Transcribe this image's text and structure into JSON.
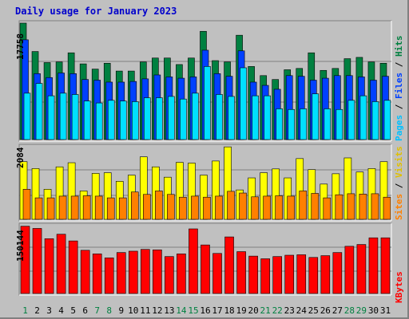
{
  "title": "Daily usage for January 2023",
  "colors": {
    "hits": "#008040",
    "files": "#0040ff",
    "pages": "#00e0ff",
    "visits": "#ffff00",
    "sites": "#ff8000",
    "kbytes": "#ff0000",
    "axis_label_normal": "#000000",
    "axis_label_weekend": "#008040",
    "title": "#0000cc"
  },
  "chart_data": [
    {
      "type": "bar",
      "panel": "hits-files-pages",
      "y_max_label": "17758",
      "ylim": [
        0,
        17758
      ],
      "legend": [
        "Pages",
        "Files",
        "Hits"
      ],
      "categories": [
        "1",
        "2",
        "3",
        "4",
        "5",
        "6",
        "7",
        "8",
        "9",
        "10",
        "11",
        "12",
        "13",
        "14",
        "15",
        "16",
        "17",
        "18",
        "19",
        "20",
        "21",
        "22",
        "23",
        "24",
        "25",
        "26",
        "27",
        "28",
        "29",
        "30",
        "31"
      ],
      "series": [
        {
          "name": "Hits",
          "values": [
            17758,
            13400,
            11700,
            11800,
            13200,
            11500,
            10700,
            11600,
            10400,
            10400,
            11800,
            12400,
            12400,
            11400,
            12400,
            16500,
            12000,
            11800,
            15900,
            11100,
            9700,
            9100,
            10600,
            10800,
            13200,
            10500,
            10800,
            12300,
            12500,
            11800,
            11600
          ]
        },
        {
          "name": "Files",
          "values": [
            15200,
            10000,
            9400,
            10100,
            10000,
            9100,
            9000,
            8700,
            8700,
            8800,
            9200,
            9800,
            9500,
            9300,
            9500,
            13600,
            10000,
            9600,
            13500,
            8700,
            8200,
            7600,
            9700,
            9600,
            9000,
            9300,
            9700,
            9700,
            9500,
            9000,
            9600
          ]
        },
        {
          "name": "Pages",
          "values": [
            7000,
            8500,
            6600,
            7000,
            6800,
            5800,
            5500,
            5900,
            5800,
            5700,
            6300,
            6300,
            6500,
            6100,
            7000,
            11100,
            6800,
            6500,
            10900,
            6600,
            6600,
            4600,
            4500,
            4600,
            6900,
            4600,
            4500,
            5900,
            6600,
            5700,
            5900
          ]
        }
      ],
      "xlabel": "",
      "ylabel": ""
    },
    {
      "type": "bar",
      "panel": "visits-sites",
      "y_max_label": "2084",
      "ylim": [
        0,
        2084
      ],
      "legend": [
        "Sites",
        "Visits"
      ],
      "categories": [
        "1",
        "2",
        "3",
        "4",
        "5",
        "6",
        "7",
        "8",
        "9",
        "10",
        "11",
        "12",
        "13",
        "14",
        "15",
        "16",
        "17",
        "18",
        "19",
        "20",
        "21",
        "22",
        "23",
        "24",
        "25",
        "26",
        "27",
        "28",
        "29",
        "30",
        "31"
      ],
      "series": [
        {
          "name": "Visits",
          "values": [
            1650,
            1450,
            850,
            1500,
            1620,
            800,
            1310,
            1330,
            1080,
            1260,
            1790,
            1500,
            1200,
            1630,
            1610,
            1260,
            1670,
            2080,
            830,
            1180,
            1330,
            1440,
            1180,
            1740,
            1420,
            1000,
            1300,
            1760,
            1350,
            1450,
            1650
          ]
        },
        {
          "name": "Sites",
          "values": [
            850,
            600,
            600,
            650,
            650,
            660,
            650,
            600,
            600,
            770,
            700,
            800,
            700,
            620,
            650,
            620,
            650,
            790,
            740,
            630,
            650,
            660,
            650,
            800,
            730,
            600,
            690,
            720,
            710,
            720,
            620
          ]
        }
      ],
      "xlabel": "",
      "ylabel": ""
    },
    {
      "type": "bar",
      "panel": "kbytes",
      "y_max_label": "150144",
      "ylim": [
        0,
        150144
      ],
      "legend": [
        "KBytes"
      ],
      "categories": [
        "1",
        "2",
        "3",
        "4",
        "5",
        "6",
        "7",
        "8",
        "9",
        "10",
        "11",
        "12",
        "13",
        "14",
        "15",
        "16",
        "17",
        "18",
        "19",
        "20",
        "21",
        "22",
        "23",
        "24",
        "25",
        "26",
        "27",
        "28",
        "29",
        "30",
        "31"
      ],
      "series": [
        {
          "name": "KBytes",
          "values": [
            149000,
            144000,
            121000,
            131000,
            116000,
            95000,
            87000,
            78000,
            90000,
            93000,
            97000,
            96000,
            81000,
            87000,
            143000,
            107000,
            88000,
            125000,
            92000,
            82000,
            76000,
            81000,
            84000,
            85000,
            79000,
            83000,
            90000,
            104000,
            108000,
            123000,
            123000
          ]
        }
      ],
      "xlabel": "",
      "ylabel": ""
    }
  ],
  "weekend_days": [
    "1",
    "7",
    "8",
    "14",
    "15",
    "21",
    "22",
    "28",
    "29"
  ]
}
